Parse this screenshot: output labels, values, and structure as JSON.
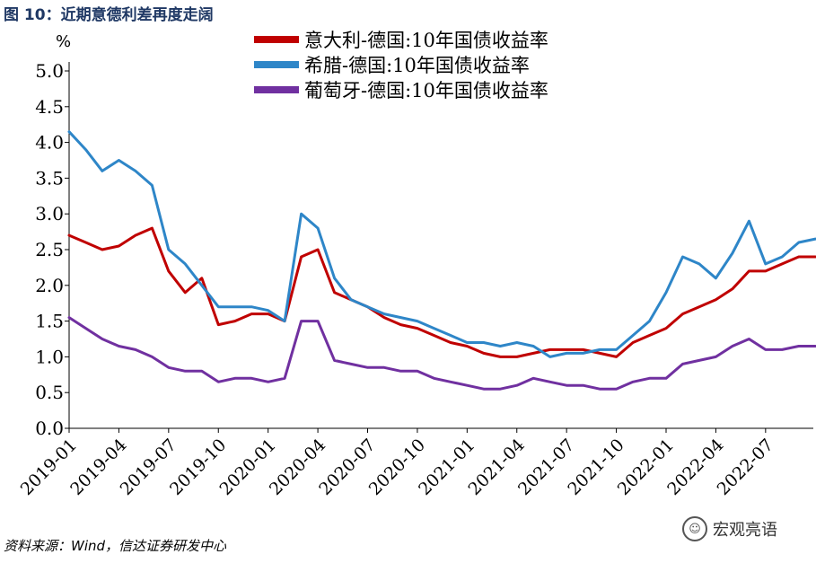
{
  "figure": {
    "title": "图 10：近期意德利差再度走阔",
    "source": "资料来源：Wind，信达证券研发中心",
    "watermark": "宏观亮语",
    "watermark_icon": "wechat-icon"
  },
  "chart_data": {
    "type": "line",
    "title": "",
    "ylabel": "%",
    "xlabel": "",
    "ylim": [
      0,
      5
    ],
    "yticks": [
      "0.0",
      "0.5",
      "1.0",
      "1.5",
      "2.0",
      "2.5",
      "3.0",
      "3.5",
      "4.0",
      "4.5",
      "5.0"
    ],
    "xlim": [
      "2019-01",
      "2022-10"
    ],
    "xticks": [
      "2019-01",
      "2019-04",
      "2019-07",
      "2019-10",
      "2020-01",
      "2020-04",
      "2020-07",
      "2020-10",
      "2021-01",
      "2021-04",
      "2021-07",
      "2021-10",
      "2022-01",
      "2022-04",
      "2022-07"
    ],
    "grid": false,
    "legend": "top-center",
    "x": [
      "2019-01",
      "2019-02",
      "2019-03",
      "2019-04",
      "2019-05",
      "2019-06",
      "2019-07",
      "2019-08",
      "2019-09",
      "2019-10",
      "2019-11",
      "2019-12",
      "2020-01",
      "2020-02",
      "2020-03",
      "2020-04",
      "2020-05",
      "2020-06",
      "2020-07",
      "2020-08",
      "2020-09",
      "2020-10",
      "2020-11",
      "2020-12",
      "2021-01",
      "2021-02",
      "2021-03",
      "2021-04",
      "2021-05",
      "2021-06",
      "2021-07",
      "2021-08",
      "2021-09",
      "2021-10",
      "2021-11",
      "2021-12",
      "2022-01",
      "2022-02",
      "2022-03",
      "2022-04",
      "2022-05",
      "2022-06",
      "2022-07",
      "2022-08",
      "2022-09",
      "2022-10"
    ],
    "series": [
      {
        "name": "意大利-德国:10年国债收益率",
        "color": "#c00000",
        "values": [
          2.7,
          2.6,
          2.5,
          2.55,
          2.7,
          2.8,
          2.2,
          1.9,
          2.1,
          1.45,
          1.5,
          1.6,
          1.6,
          1.5,
          2.4,
          2.5,
          1.9,
          1.8,
          1.7,
          1.55,
          1.45,
          1.4,
          1.3,
          1.2,
          1.15,
          1.05,
          1.0,
          1.0,
          1.05,
          1.1,
          1.1,
          1.1,
          1.05,
          1.0,
          1.2,
          1.3,
          1.4,
          1.6,
          1.7,
          1.8,
          1.95,
          2.2,
          2.2,
          2.3,
          2.4,
          2.4
        ]
      },
      {
        "name": "希腊-德国:10年国债收益率",
        "color": "#2e86c8",
        "values": [
          4.15,
          3.9,
          3.6,
          3.75,
          3.6,
          3.4,
          2.5,
          2.3,
          2.0,
          1.7,
          1.7,
          1.7,
          1.65,
          1.5,
          3.0,
          2.8,
          2.1,
          1.8,
          1.7,
          1.6,
          1.55,
          1.5,
          1.4,
          1.3,
          1.2,
          1.2,
          1.15,
          1.2,
          1.15,
          1.0,
          1.05,
          1.05,
          1.1,
          1.1,
          1.3,
          1.5,
          1.9,
          2.4,
          2.3,
          2.1,
          2.45,
          2.9,
          2.3,
          2.4,
          2.6,
          2.65
        ]
      },
      {
        "name": "葡萄牙-德国:10年国债收益率",
        "color": "#7030a0",
        "values": [
          1.55,
          1.4,
          1.25,
          1.15,
          1.1,
          1.0,
          0.85,
          0.8,
          0.8,
          0.65,
          0.7,
          0.7,
          0.65,
          0.7,
          1.5,
          1.5,
          0.95,
          0.9,
          0.85,
          0.85,
          0.8,
          0.8,
          0.7,
          0.65,
          0.6,
          0.55,
          0.55,
          0.6,
          0.7,
          0.65,
          0.6,
          0.6,
          0.55,
          0.55,
          0.65,
          0.7,
          0.7,
          0.9,
          0.95,
          1.0,
          1.15,
          1.25,
          1.1,
          1.1,
          1.15,
          1.15
        ]
      }
    ]
  }
}
